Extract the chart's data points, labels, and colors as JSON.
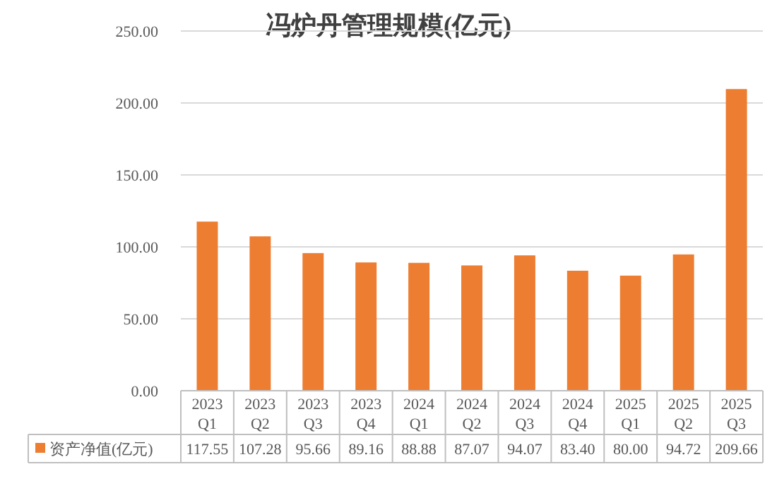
{
  "chart_data": {
    "type": "bar",
    "title": "冯炉丹管理规模(亿元)",
    "categories": [
      "2023 Q1",
      "2023 Q2",
      "2023 Q3",
      "2023 Q4",
      "2024 Q1",
      "2024 Q2",
      "2024 Q3",
      "2024 Q4",
      "2025 Q1",
      "2025 Q2",
      "2025 Q3"
    ],
    "series": [
      {
        "name": "资产净值(亿元)",
        "color": "#ed7d31",
        "values": [
          117.55,
          107.28,
          95.66,
          89.16,
          88.88,
          87.07,
          94.07,
          83.4,
          80.0,
          94.72,
          209.66
        ],
        "value_labels": [
          "117.55",
          "107.28",
          "95.66",
          "89.16",
          "88.88",
          "87.07",
          "94.07",
          "83.40",
          "80.00",
          "94.72",
          "209.66"
        ]
      }
    ],
    "ylim": [
      0,
      250
    ],
    "yticks": [
      {
        "value": 0,
        "label": "0.00"
      },
      {
        "value": 50,
        "label": "50.00"
      },
      {
        "value": 100,
        "label": "100.00"
      },
      {
        "value": 150,
        "label": "150.00"
      },
      {
        "value": 200,
        "label": "200.00"
      },
      {
        "value": 250,
        "label": "250.00"
      }
    ],
    "grid": "y",
    "legend": "bottom"
  }
}
